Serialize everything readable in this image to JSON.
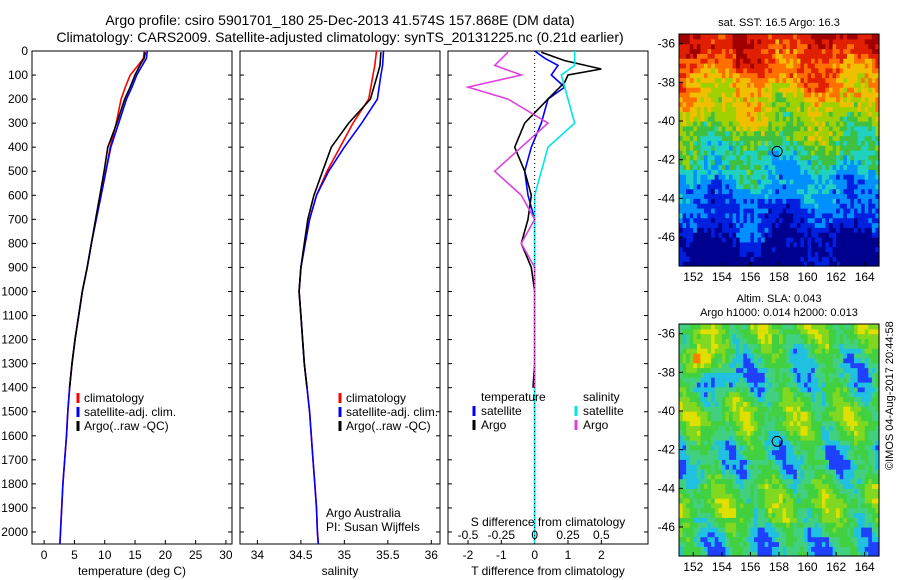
{
  "header": {
    "title_line1": "Argo profile: csiro 5901701_180 25-Dec-2013 41.574S 157.868E (DM data)",
    "title_line2": "Climatology: CARS2009. Satellite-adjusted climatology: synTS_20131225.nc (0.21d earlier)"
  },
  "footer_stamp": "©IMOS 04-Aug-2017 20:44:58",
  "colors": {
    "climatology": "#ff0000",
    "satellite": "#0000ff",
    "argo": "#000000",
    "salinity_satellite": "#00e5e5",
    "salinity_argo": "#e040e0"
  },
  "chart_data": [
    {
      "type": "line",
      "id": "temperature",
      "xlabel": "temperature (deg C)",
      "ylabel": "",
      "xlim": [
        -2,
        31
      ],
      "ylim": [
        2050,
        0
      ],
      "xticks": [
        0,
        5,
        10,
        15,
        20,
        25,
        30
      ],
      "yticks": [
        0,
        100,
        200,
        300,
        400,
        500,
        600,
        700,
        800,
        900,
        1000,
        1100,
        1200,
        1300,
        1400,
        1500,
        1600,
        1700,
        1800,
        1900,
        2000
      ],
      "legend": [
        "climatology",
        "satellite-adj. clim.",
        "Argo(..raw -QC)"
      ],
      "series": [
        {
          "name": "climatology",
          "color": "#ff0000",
          "points": [
            [
              16.5,
              0
            ],
            [
              16.4,
              30
            ],
            [
              15.5,
              60
            ],
            [
              14.2,
              100
            ],
            [
              13.4,
              150
            ],
            [
              12.7,
              200
            ],
            [
              11.9,
              300
            ],
            [
              10.9,
              400
            ],
            [
              10.2,
              500
            ],
            [
              9.4,
              600
            ],
            [
              8.6,
              700
            ],
            [
              7.8,
              800
            ],
            [
              7.1,
              900
            ],
            [
              6.3,
              1000
            ],
            [
              5.7,
              1100
            ],
            [
              5.1,
              1200
            ],
            [
              4.6,
              1300
            ],
            [
              4.2,
              1400
            ],
            [
              3.9,
              1500
            ],
            [
              3.7,
              1600
            ],
            [
              3.4,
              1700
            ],
            [
              3.1,
              1800
            ],
            [
              2.9,
              1900
            ],
            [
              2.7,
              2000
            ],
            [
              2.6,
              2050
            ]
          ]
        },
        {
          "name": "satellite-adj. clim.",
          "color": "#0000ff",
          "points": [
            [
              17.0,
              0
            ],
            [
              16.9,
              30
            ],
            [
              16.2,
              60
            ],
            [
              15.3,
              100
            ],
            [
              14.5,
              150
            ],
            [
              13.6,
              200
            ],
            [
              12.3,
              300
            ],
            [
              11.0,
              400
            ],
            [
              10.2,
              500
            ],
            [
              9.4,
              600
            ],
            [
              8.6,
              700
            ],
            [
              7.8,
              800
            ],
            [
              7.1,
              900
            ],
            [
              6.3,
              1000
            ],
            [
              5.7,
              1100
            ],
            [
              5.1,
              1200
            ],
            [
              4.6,
              1300
            ],
            [
              4.2,
              1400
            ],
            [
              3.9,
              1500
            ],
            [
              3.7,
              1600
            ],
            [
              3.4,
              1700
            ],
            [
              3.1,
              1800
            ],
            [
              2.9,
              1900
            ],
            [
              2.7,
              2000
            ],
            [
              2.6,
              2050
            ]
          ]
        },
        {
          "name": "Argo(..raw -QC)",
          "color": "#000000",
          "points": [
            [
              16.7,
              5
            ],
            [
              16.5,
              30
            ],
            [
              15.8,
              60
            ],
            [
              15.0,
              100
            ],
            [
              14.2,
              150
            ],
            [
              13.3,
              200
            ],
            [
              12.0,
              300
            ],
            [
              10.5,
              400
            ],
            [
              9.9,
              500
            ],
            [
              9.2,
              600
            ],
            [
              8.5,
              700
            ],
            [
              7.8,
              800
            ],
            [
              7.1,
              900
            ],
            [
              6.3,
              1000
            ],
            [
              5.7,
              1100
            ],
            [
              5.1,
              1200
            ],
            [
              4.6,
              1300
            ],
            [
              4.2,
              1400
            ]
          ]
        }
      ]
    },
    {
      "type": "line",
      "id": "salinity",
      "xlabel": "salinity",
      "ylabel": "",
      "xlim": [
        33.8,
        36.1
      ],
      "ylim": [
        2050,
        0
      ],
      "xticks": [
        34,
        34.5,
        35,
        35.5,
        36
      ],
      "legend": [
        "climatology",
        "satellite-adj. clim.",
        "Argo(..raw -QC)"
      ],
      "annotation": [
        "Argo Australia",
        "PI: Susan Wijffels"
      ],
      "series": [
        {
          "name": "climatology",
          "color": "#ff0000",
          "points": [
            [
              35.37,
              0
            ],
            [
              35.35,
              60
            ],
            [
              35.33,
              100
            ],
            [
              35.28,
              200
            ],
            [
              35.1,
              300
            ],
            [
              34.95,
              400
            ],
            [
              34.8,
              500
            ],
            [
              34.68,
              600
            ],
            [
              34.6,
              700
            ],
            [
              34.55,
              800
            ],
            [
              34.5,
              900
            ],
            [
              34.48,
              1000
            ],
            [
              34.5,
              1100
            ],
            [
              34.52,
              1200
            ],
            [
              34.54,
              1300
            ],
            [
              34.57,
              1400
            ],
            [
              34.6,
              1500
            ],
            [
              34.62,
              1600
            ],
            [
              34.64,
              1700
            ],
            [
              34.66,
              1800
            ],
            [
              34.68,
              1900
            ],
            [
              34.69,
              2000
            ],
            [
              34.7,
              2050
            ]
          ]
        },
        {
          "name": "satellite-adj. clim.",
          "color": "#0000ff",
          "points": [
            [
              35.45,
              0
            ],
            [
              35.44,
              60
            ],
            [
              35.42,
              100
            ],
            [
              35.38,
              200
            ],
            [
              35.2,
              300
            ],
            [
              35.0,
              400
            ],
            [
              34.82,
              500
            ],
            [
              34.68,
              600
            ],
            [
              34.6,
              700
            ],
            [
              34.55,
              800
            ],
            [
              34.5,
              900
            ],
            [
              34.48,
              1000
            ],
            [
              34.5,
              1100
            ],
            [
              34.52,
              1200
            ],
            [
              34.54,
              1300
            ],
            [
              34.57,
              1400
            ],
            [
              34.6,
              1500
            ],
            [
              34.62,
              1600
            ],
            [
              34.64,
              1700
            ],
            [
              34.66,
              1800
            ],
            [
              34.68,
              1900
            ],
            [
              34.69,
              2000
            ],
            [
              34.7,
              2050
            ]
          ]
        },
        {
          "name": "Argo(..raw -QC)",
          "color": "#000000",
          "points": [
            [
              35.42,
              5
            ],
            [
              35.41,
              60
            ],
            [
              35.38,
              100
            ],
            [
              35.3,
              200
            ],
            [
              35.05,
              300
            ],
            [
              34.85,
              400
            ],
            [
              34.75,
              500
            ],
            [
              34.65,
              600
            ],
            [
              34.58,
              700
            ],
            [
              34.54,
              800
            ],
            [
              34.5,
              900
            ],
            [
              34.48,
              1000
            ],
            [
              34.5,
              1100
            ],
            [
              34.52,
              1200
            ],
            [
              34.54,
              1300
            ],
            [
              34.57,
              1400
            ]
          ]
        }
      ]
    },
    {
      "type": "line",
      "id": "differences",
      "xlabel": "T difference from climatology",
      "xlabel_top": "S difference from climatology",
      "xlim": [
        -2.6,
        3.4
      ],
      "ylim": [
        2050,
        0
      ],
      "xticks": [
        -2,
        -1,
        0,
        1,
        2
      ],
      "xticks_s": [
        -0.5,
        -0.25,
        0,
        0.25,
        0.5
      ],
      "legend_t_title": "temperature",
      "legend_s_title": "salinity",
      "legend": [
        "satellite",
        "Argo",
        "satellite",
        "Argo"
      ],
      "series": [
        {
          "name": "satellite",
          "quantity": "temperature",
          "color": "#0000ff",
          "points": [
            [
              0,
              0
            ],
            [
              0.3,
              30
            ],
            [
              0.7,
              60
            ],
            [
              0.5,
              100
            ],
            [
              0.9,
              150
            ],
            [
              0.4,
              200
            ],
            [
              0.2,
              300
            ],
            [
              -0.1,
              400
            ],
            [
              -0.3,
              500
            ],
            [
              -0.2,
              600
            ],
            [
              0,
              700
            ],
            [
              0,
              800
            ],
            [
              0,
              900
            ],
            [
              0,
              1000
            ],
            [
              0,
              1200
            ],
            [
              0,
              1400
            ],
            [
              0,
              1600
            ],
            [
              0,
              2000
            ],
            [
              0,
              2050
            ]
          ]
        },
        {
          "name": "Argo",
          "quantity": "temperature",
          "color": "#000000",
          "points": [
            [
              0.2,
              5
            ],
            [
              0.9,
              40
            ],
            [
              2.0,
              75
            ],
            [
              1.0,
              100
            ],
            [
              0.9,
              130
            ],
            [
              0.4,
              200
            ],
            [
              -0.3,
              300
            ],
            [
              -0.6,
              400
            ],
            [
              -0.3,
              500
            ],
            [
              -0.1,
              600
            ],
            [
              -0.2,
              700
            ],
            [
              -0.4,
              800
            ],
            [
              -0.1,
              900
            ],
            [
              0,
              1000
            ],
            [
              0,
              1100
            ],
            [
              0,
              1200
            ],
            [
              0,
              1300
            ],
            [
              -0.05,
              1400
            ]
          ]
        },
        {
          "name": "satellite",
          "quantity": "salinity",
          "color": "#00e5e5",
          "points": [
            [
              0.3,
              0
            ],
            [
              0.3,
              60
            ],
            [
              0.2,
              100
            ],
            [
              0.25,
              200
            ],
            [
              0.3,
              300
            ],
            [
              0.1,
              400
            ],
            [
              0.05,
              500
            ],
            [
              0,
              600
            ],
            [
              0,
              800
            ],
            [
              0,
              1000
            ],
            [
              0,
              1200
            ],
            [
              0,
              1400
            ],
            [
              0,
              1600
            ],
            [
              0,
              1800
            ],
            [
              0,
              2000
            ],
            [
              0,
              2050
            ]
          ]
        },
        {
          "name": "Argo",
          "quantity": "salinity",
          "color": "#e040e0",
          "points": [
            [
              -0.2,
              5
            ],
            [
              -0.3,
              60
            ],
            [
              -0.1,
              100
            ],
            [
              -0.5,
              150
            ],
            [
              -0.2,
              200
            ],
            [
              0.1,
              300
            ],
            [
              -0.1,
              400
            ],
            [
              -0.3,
              500
            ],
            [
              -0.1,
              600
            ],
            [
              0,
              700
            ],
            [
              -0.1,
              800
            ],
            [
              0,
              900
            ],
            [
              0,
              1000
            ],
            [
              0,
              1200
            ],
            [
              0,
              1400
            ]
          ]
        }
      ]
    },
    {
      "type": "heatmap",
      "id": "sst_map",
      "title": "sat. SST: 16.5 Argo: 16.3",
      "xlim": [
        151,
        165
      ],
      "ylim": [
        -47.5,
        -35.5
      ],
      "xticks": [
        152,
        154,
        156,
        158,
        160,
        162,
        164
      ],
      "yticks": [
        -36,
        -38,
        -40,
        -42,
        -44,
        -46
      ],
      "marker": {
        "lon": 157.87,
        "lat": -41.57
      }
    },
    {
      "type": "heatmap",
      "id": "sla_map",
      "title_line1": "Altim. SLA: 0.043",
      "title_line2": "Argo h1000: 0.014 h2000: 0.013",
      "xlim": [
        151,
        165
      ],
      "ylim": [
        -47.5,
        -35.5
      ],
      "xticks": [
        152,
        154,
        156,
        158,
        160,
        162,
        164
      ],
      "yticks": [
        -36,
        -38,
        -40,
        -42,
        -44,
        -46
      ],
      "marker": {
        "lon": 157.87,
        "lat": -41.57
      }
    }
  ]
}
